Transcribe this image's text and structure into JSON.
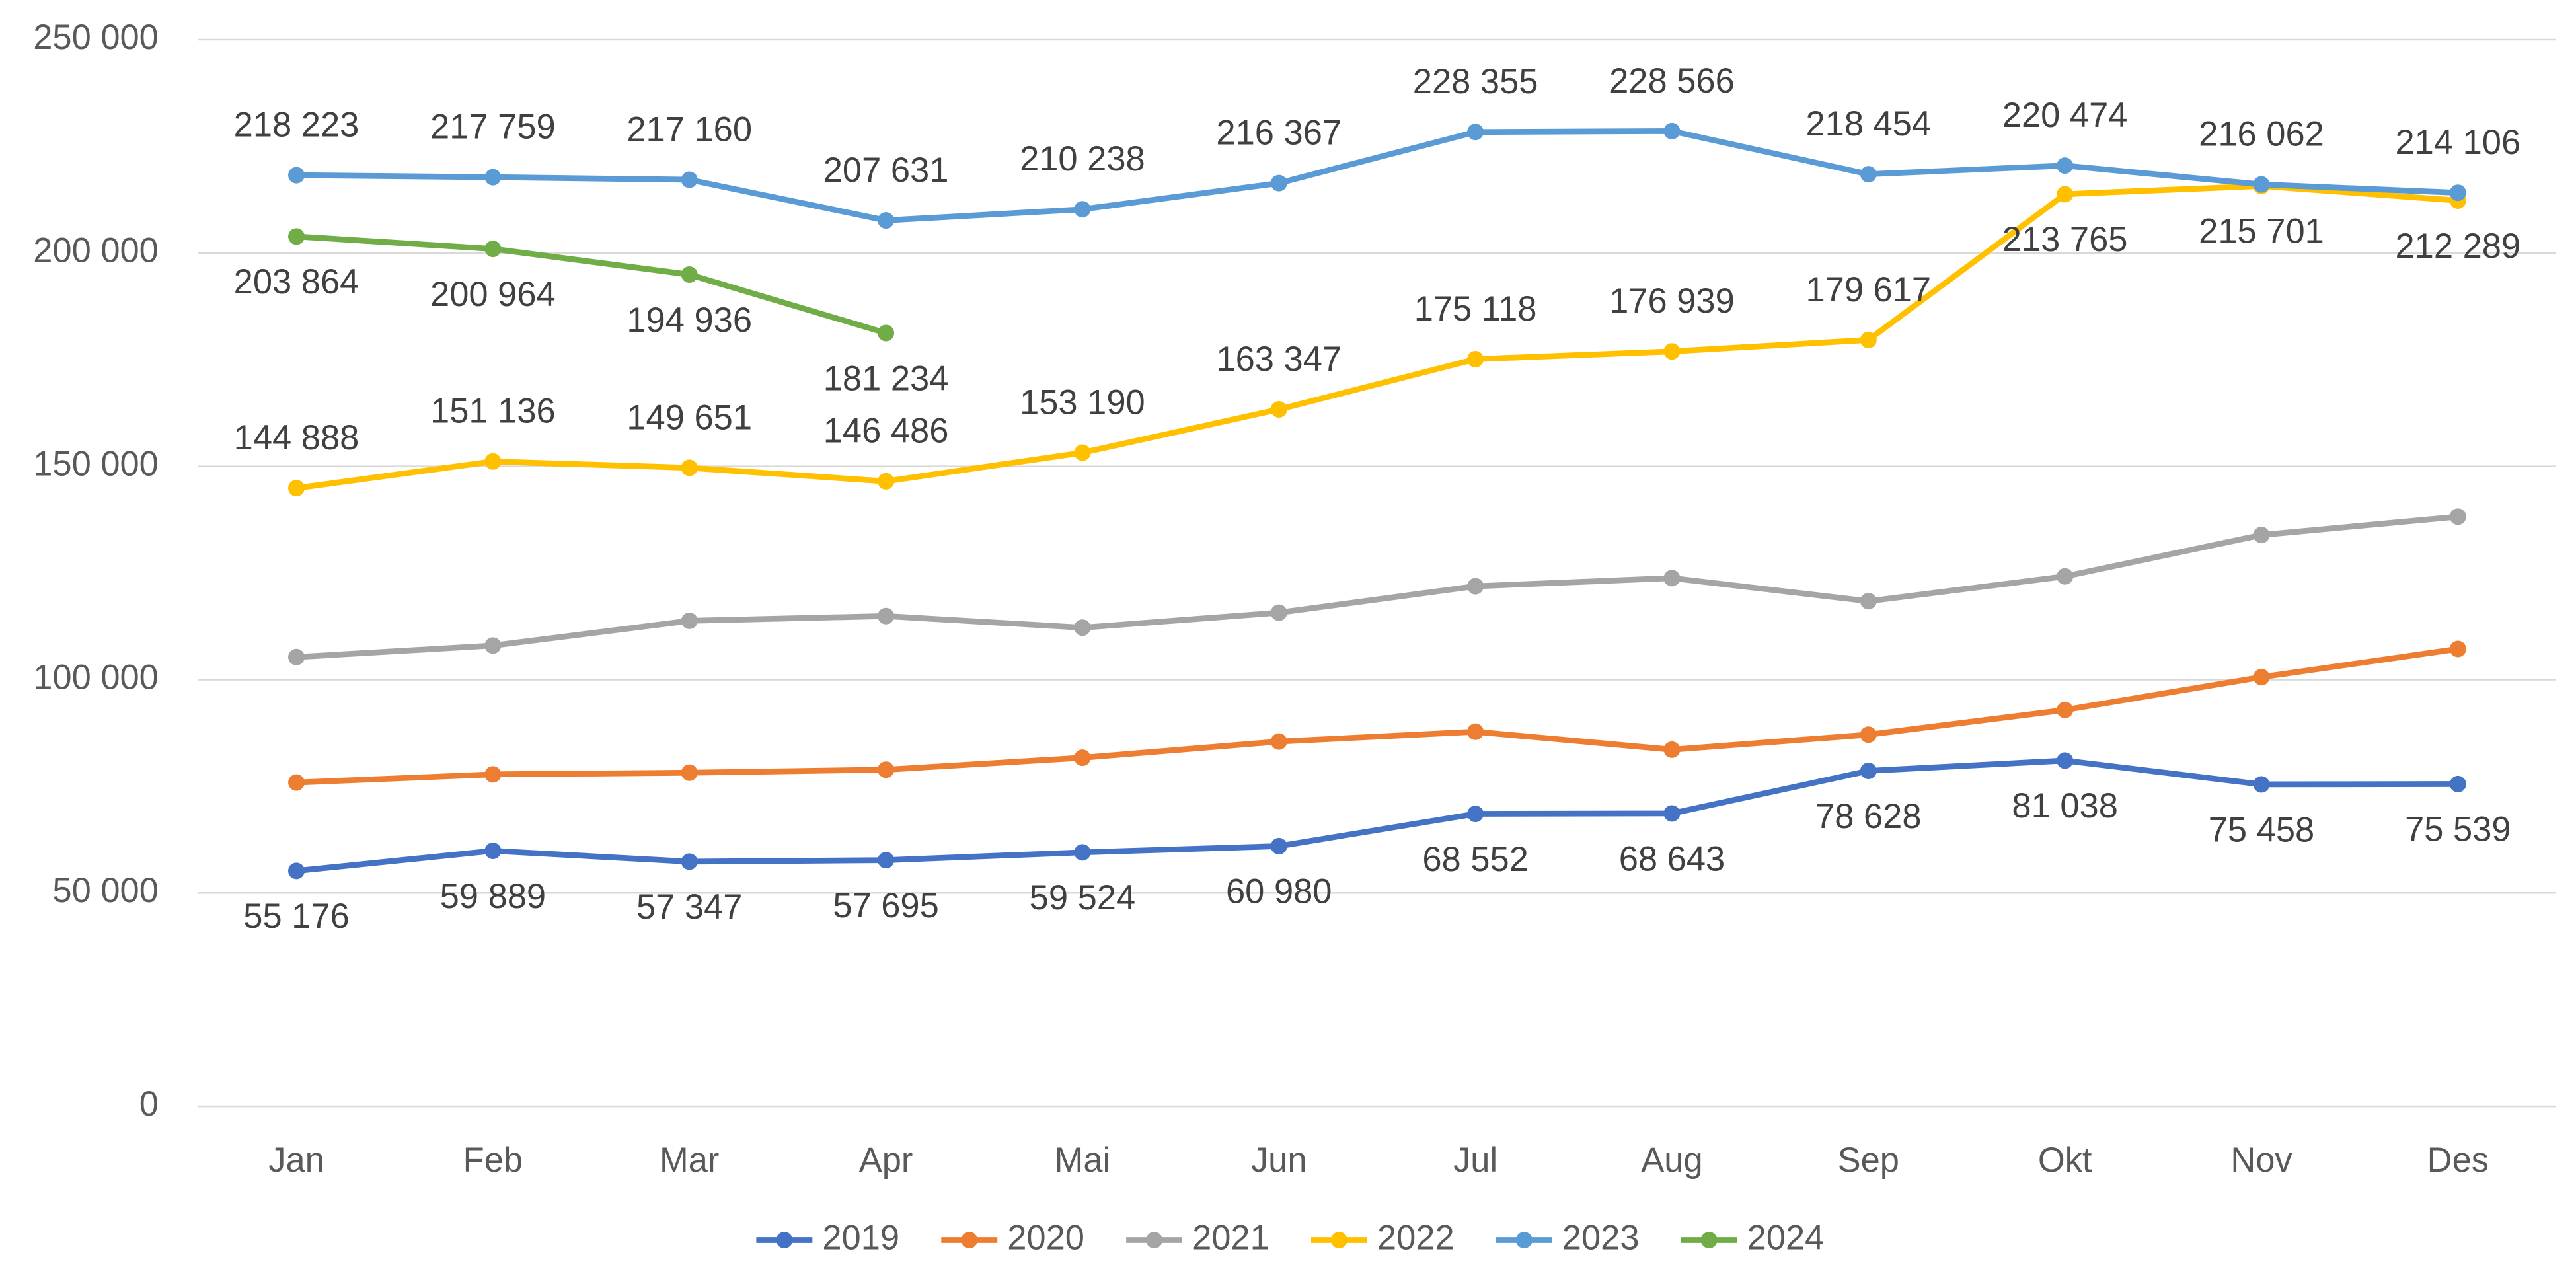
{
  "chart_data": {
    "type": "line",
    "categories": [
      "Jan",
      "Feb",
      "Mar",
      "Apr",
      "Mai",
      "Jun",
      "Jul",
      "Aug",
      "Sep",
      "Okt",
      "Nov",
      "Des"
    ],
    "ylim": [
      0,
      250000
    ],
    "yticks": [
      0,
      {
        "value": 50000,
        "label": "50 000"
      },
      {
        "value": 100000,
        "label": "100 000"
      },
      {
        "value": 150000,
        "label": "150 000"
      },
      {
        "value": 200000,
        "label": "200 000"
      },
      {
        "value": 250000,
        "label": "250 000"
      }
    ],
    "grid": true,
    "legend": "bottom",
    "series": [
      {
        "name": "2019",
        "color": "#4472c4",
        "values": [
          55176,
          59889,
          57347,
          57695,
          59524,
          60980,
          68552,
          68643,
          78628,
          81038,
          75458,
          75539
        ],
        "value_labels": [
          "55 176",
          "59 889",
          "57 347",
          "57 695",
          "59 524",
          "60 980",
          "68 552",
          "68 643",
          "78 628",
          "81 038",
          "75 458",
          "75 539"
        ]
      },
      {
        "name": "2020",
        "color": "#ed7d31",
        "values": [
          75900,
          77800,
          78200,
          78900,
          81700,
          85500,
          87800,
          83600,
          87100,
          92900,
          100600,
          107200
        ]
      },
      {
        "name": "2021",
        "color": "#a5a5a5",
        "values": [
          105300,
          108000,
          113800,
          114900,
          112200,
          115700,
          121900,
          123800,
          118400,
          124200,
          133900,
          138200
        ]
      },
      {
        "name": "2022",
        "color": "#ffc000",
        "values": [
          144888,
          151136,
          149651,
          146486,
          153190,
          163347,
          175118,
          176939,
          179617,
          213765,
          215701,
          212289
        ],
        "value_labels": [
          "144 888",
          "151 136",
          "149 651",
          "146 486",
          "153 190",
          "163 347",
          "175 118",
          "176 939",
          "179 617",
          "213 765",
          "215 701",
          "212 289"
        ]
      },
      {
        "name": "2023",
        "color": "#5b9bd5",
        "values": [
          218223,
          217759,
          217160,
          207631,
          210238,
          216367,
          228355,
          228566,
          218454,
          220474,
          216062,
          214106
        ],
        "value_labels": [
          "218 223",
          "217 759",
          "217 160",
          "207 631",
          "210 238",
          "216 367",
          "228 355",
          "228 566",
          "218 454",
          "220 474",
          "216 062",
          "214 106"
        ]
      },
      {
        "name": "2024",
        "color": "#70ad47",
        "values": [
          203864,
          200964,
          194936,
          181234,
          null,
          null,
          null,
          null,
          null,
          null,
          null,
          null
        ],
        "value_labels": [
          "203 864",
          "200 964",
          "194 936",
          "181 234",
          null,
          null,
          null,
          null,
          null,
          null,
          null,
          null
        ]
      }
    ]
  }
}
